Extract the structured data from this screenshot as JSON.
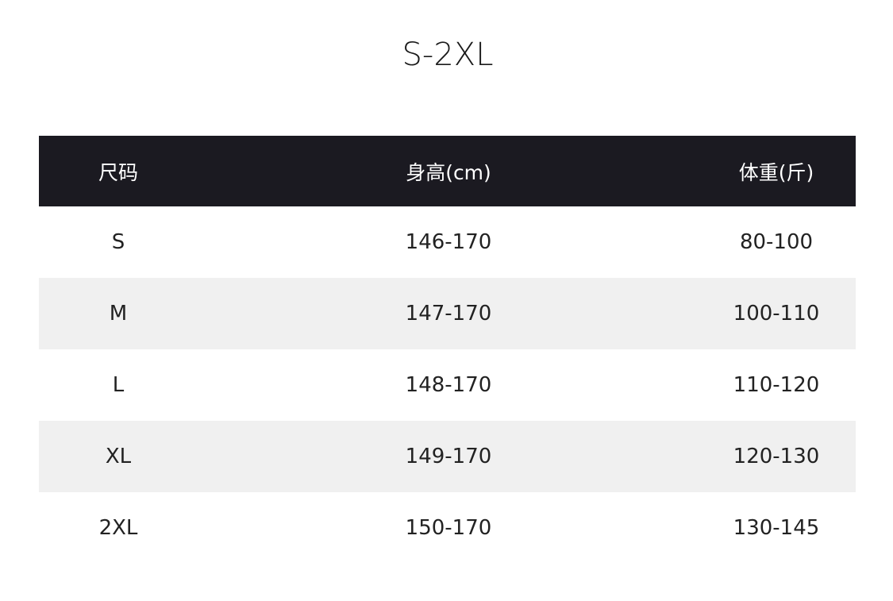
{
  "title": "S-2XL",
  "colors": {
    "header_bg": "#1b1a21",
    "alt_row_bg": "#f0f0f0"
  },
  "table": {
    "headers": [
      "尺码",
      "身高(cm)",
      "体重(斤)"
    ],
    "rows": [
      [
        "S",
        "146-170",
        "80-100"
      ],
      [
        "M",
        "147-170",
        "100-110"
      ],
      [
        "L",
        "148-170",
        "110-120"
      ],
      [
        "XL",
        "149-170",
        "120-130"
      ],
      [
        "2XL",
        "150-170",
        "130-145"
      ]
    ]
  }
}
